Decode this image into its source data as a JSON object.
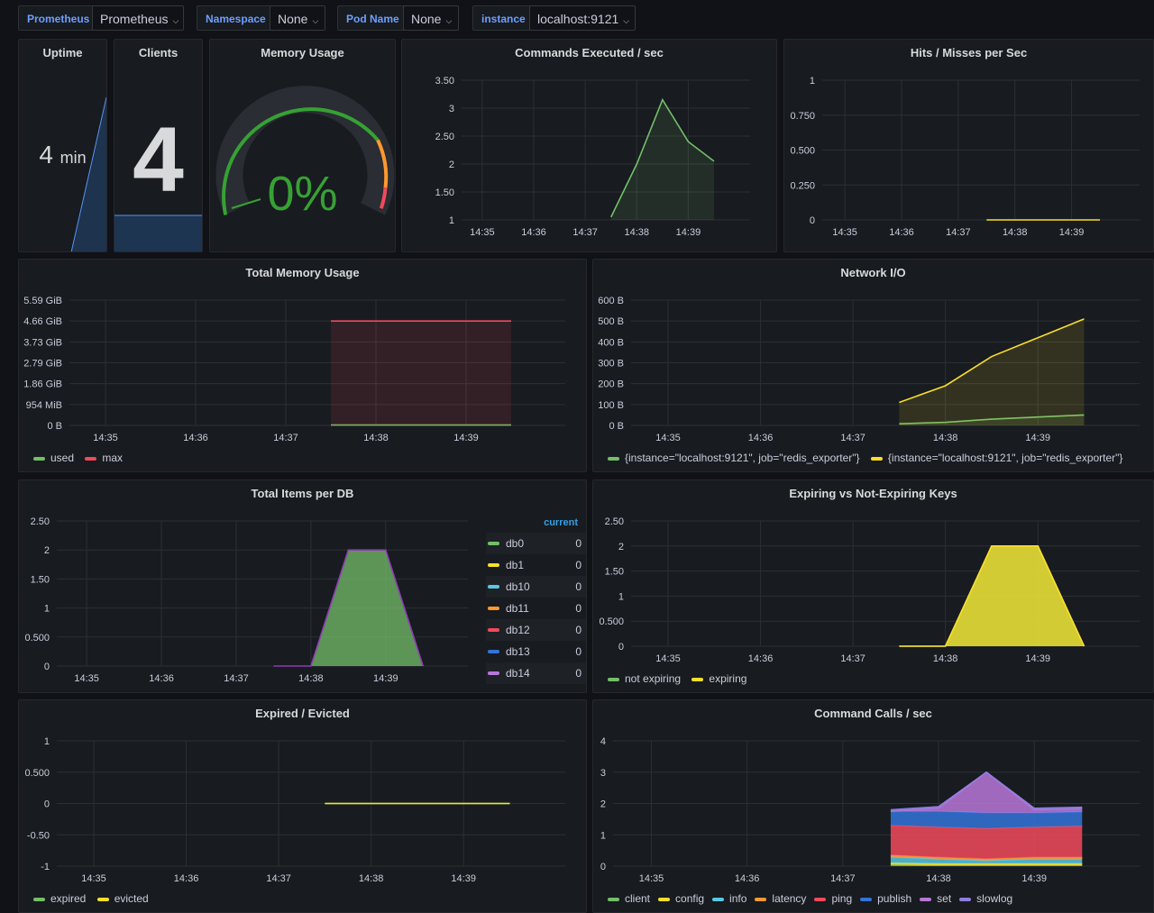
{
  "variables": [
    {
      "label": "Prometheus",
      "value": "Prometheus"
    },
    {
      "label": "Namespace",
      "value": "None"
    },
    {
      "label": "Pod Name",
      "value": "None"
    },
    {
      "label": "instance",
      "value": "localhost:9121"
    }
  ],
  "colors": {
    "green": "#73bf69",
    "yellow": "#fade2a",
    "red": "#f2495c",
    "blue": "#5794f2",
    "orange": "#ff9830",
    "purple": "#b877d9",
    "cyan": "#8ab8ff",
    "grid": "#2c3035",
    "text": "#ccccdc"
  },
  "panels": {
    "uptime": {
      "title": "Uptime",
      "value": "4",
      "unit": "min"
    },
    "clients": {
      "title": "Clients",
      "value": "4"
    },
    "memory_gauge": {
      "title": "Memory Usage",
      "value": "0%",
      "percent": 0
    }
  },
  "chart_data": [
    {
      "id": "commands",
      "title": "Commands Executed / sec",
      "type": "area",
      "x": [
        "14:35",
        "14:36",
        "14:37",
        "14:38",
        "14:39"
      ],
      "y_ticks": [
        "3.50",
        "3",
        "2.50",
        "2",
        "1.50",
        "1"
      ],
      "ylim": [
        1,
        3.5
      ],
      "series": [
        {
          "color": "#73bf69",
          "points": [
            [
              "14:37.5",
              1.05
            ],
            [
              "14:38.0",
              2.0
            ],
            [
              "14:38.5",
              3.15
            ],
            [
              "14:39.0",
              2.4
            ],
            [
              "14:39.5",
              2.05
            ]
          ]
        }
      ]
    },
    {
      "id": "hits",
      "title": "Hits / Misses per Sec",
      "type": "line",
      "x": [
        "14:35",
        "14:36",
        "14:37",
        "14:38",
        "14:39"
      ],
      "y_ticks": [
        "1",
        "0.750",
        "0.500",
        "0.250",
        "0"
      ],
      "ylim": [
        0,
        1
      ],
      "series": [
        {
          "color": "#fade2a",
          "points": [
            [
              "14:37.5",
              0
            ],
            [
              "14:39.5",
              0
            ]
          ]
        }
      ]
    },
    {
      "id": "total_memory",
      "title": "Total Memory Usage",
      "type": "area",
      "x": [
        "14:35",
        "14:36",
        "14:37",
        "14:38",
        "14:39"
      ],
      "y_ticks": [
        "5.59 GiB",
        "4.66 GiB",
        "3.73 GiB",
        "2.79 GiB",
        "1.86 GiB",
        "954 MiB",
        "0 B"
      ],
      "ylim": [
        0,
        6
      ],
      "series": [
        {
          "name": "used",
          "color": "#73bf69",
          "points": [
            [
              "14:37.5",
              0.02
            ],
            [
              "14:39.5",
              0.02
            ]
          ]
        },
        {
          "name": "max",
          "color": "#f2495c",
          "points": [
            [
              "14:37.5",
              5.0
            ],
            [
              "14:39.5",
              5.0
            ]
          ]
        }
      ],
      "legend": [
        "used",
        "max"
      ]
    },
    {
      "id": "network",
      "title": "Network I/O",
      "type": "area",
      "x": [
        "14:35",
        "14:36",
        "14:37",
        "14:38",
        "14:39"
      ],
      "y_ticks": [
        "600 B",
        "500 B",
        "400 B",
        "300 B",
        "200 B",
        "100 B",
        "0 B"
      ],
      "ylim": [
        0,
        600
      ],
      "series": [
        {
          "name": "{instance=\"localhost:9121\", job=\"redis_exporter\"}",
          "color": "#73bf69",
          "points": [
            [
              "14:37.5",
              8
            ],
            [
              "14:38.0",
              15
            ],
            [
              "14:38.5",
              30
            ],
            [
              "14:39.0",
              40
            ],
            [
              "14:39.5",
              50
            ]
          ]
        },
        {
          "name": "{instance=\"localhost:9121\", job=\"redis_exporter\"}",
          "color": "#fade2a",
          "points": [
            [
              "14:37.5",
              110
            ],
            [
              "14:38.0",
              190
            ],
            [
              "14:38.5",
              330
            ],
            [
              "14:39.0",
              420
            ],
            [
              "14:39.5",
              510
            ]
          ]
        }
      ]
    },
    {
      "id": "items",
      "title": "Total Items per DB",
      "type": "area",
      "x": [
        "14:35",
        "14:36",
        "14:37",
        "14:38",
        "14:39"
      ],
      "y_ticks": [
        "2.50",
        "2",
        "1.50",
        "1",
        "0.500",
        "0"
      ],
      "ylim": [
        0,
        2.5
      ],
      "series": [
        {
          "name": "db0",
          "color": "#73bf69",
          "points": [
            [
              "14:37.5",
              0
            ],
            [
              "14:38.0",
              0
            ],
            [
              "14:38.5",
              2
            ],
            [
              "14:39.0",
              2
            ],
            [
              "14:39.5",
              0
            ]
          ]
        }
      ],
      "legend_header": "current",
      "legend_rows": [
        {
          "name": "db0",
          "value": "0",
          "color": "#73bf69"
        },
        {
          "name": "db1",
          "value": "0",
          "color": "#fade2a"
        },
        {
          "name": "db10",
          "value": "0",
          "color": "#5ac8e0"
        },
        {
          "name": "db11",
          "value": "0",
          "color": "#ff9830"
        },
        {
          "name": "db12",
          "value": "0",
          "color": "#f2495c"
        },
        {
          "name": "db13",
          "value": "0",
          "color": "#3274d9"
        },
        {
          "name": "db14",
          "value": "0",
          "color": "#b877d9"
        }
      ]
    },
    {
      "id": "expiring",
      "title": "Expiring vs Not-Expiring Keys",
      "type": "area",
      "x": [
        "14:35",
        "14:36",
        "14:37",
        "14:38",
        "14:39"
      ],
      "y_ticks": [
        "2.50",
        "2",
        "1.50",
        "1",
        "0.500",
        "0"
      ],
      "ylim": [
        0,
        2.5
      ],
      "series": [
        {
          "name": "not expiring",
          "color": "#73bf69",
          "points": [
            [
              "14:37.5",
              0
            ],
            [
              "14:38.0",
              0
            ],
            [
              "14:38.5",
              2
            ],
            [
              "14:39.0",
              2
            ],
            [
              "14:39.5",
              0
            ]
          ]
        },
        {
          "name": "expiring",
          "color": "#fade2a",
          "points": [
            [
              "14:37.5",
              0
            ],
            [
              "14:38.0",
              0
            ],
            [
              "14:38.5",
              2
            ],
            [
              "14:39.0",
              2
            ],
            [
              "14:39.5",
              0
            ]
          ]
        }
      ]
    },
    {
      "id": "expired",
      "title": "Expired / Evicted",
      "type": "line",
      "x": [
        "14:35",
        "14:36",
        "14:37",
        "14:38",
        "14:39"
      ],
      "y_ticks": [
        "1",
        "0.500",
        "0",
        "-0.50",
        "-1"
      ],
      "ylim": [
        -1,
        1
      ],
      "series": [
        {
          "name": "expired",
          "color": "#73bf69",
          "points": [
            [
              "14:37.5",
              0
            ],
            [
              "14:39.5",
              0
            ]
          ]
        },
        {
          "name": "evicted",
          "color": "#fade2a",
          "points": [
            [
              "14:37.5",
              0
            ],
            [
              "14:39.5",
              0
            ]
          ]
        }
      ]
    },
    {
      "id": "calls",
      "title": "Command Calls / sec",
      "type": "area",
      "stacked": true,
      "x": [
        "14:35",
        "14:36",
        "14:37",
        "14:38",
        "14:39"
      ],
      "y_ticks": [
        "4",
        "3",
        "2",
        "1",
        "0"
      ],
      "ylim": [
        0,
        4
      ],
      "x_points": [
        "14:37.5",
        "14:38.0",
        "14:38.5",
        "14:39.0",
        "14:39.5"
      ],
      "series": [
        {
          "name": "client",
          "color": "#73bf69",
          "values": [
            0.05,
            0.03,
            0.03,
            0.03,
            0.03
          ]
        },
        {
          "name": "config",
          "color": "#fade2a",
          "values": [
            0.05,
            0.05,
            0.05,
            0.05,
            0.05
          ]
        },
        {
          "name": "info",
          "color": "#5ac8e0",
          "values": [
            0.2,
            0.15,
            0.1,
            0.15,
            0.15
          ]
        },
        {
          "name": "latency",
          "color": "#ff9830",
          "values": [
            0.05,
            0.05,
            0.05,
            0.05,
            0.05
          ]
        },
        {
          "name": "ping",
          "color": "#f2495c",
          "values": [
            0.95,
            0.97,
            0.97,
            0.97,
            1.0
          ]
        },
        {
          "name": "publish",
          "color": "#3274d9",
          "values": [
            0.45,
            0.5,
            0.5,
            0.45,
            0.45
          ]
        },
        {
          "name": "set",
          "color": "#b877d9",
          "values": [
            0.0,
            0.1,
            1.3,
            0.1,
            0.1
          ]
        },
        {
          "name": "slowlog",
          "color": "#8f7ee0",
          "values": [
            0.05,
            0.05,
            0.0,
            0.05,
            0.05
          ]
        }
      ]
    }
  ]
}
